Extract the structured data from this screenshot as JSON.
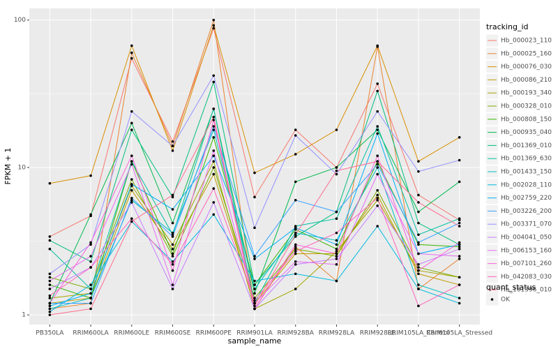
{
  "chart_data": {
    "type": "line",
    "x_label": "sample_name",
    "y_label": "FPKM + 1",
    "categories": [
      "PB350LA",
      "RRIM600LA",
      "RRIM600LE",
      "RRIM600SE",
      "RRIM600PE",
      "RRIM901LA",
      "RRIM928BA",
      "RRIM928LA",
      "RRIM928LE",
      "RRIM105LA_Control",
      "RRIM105LA_Stressed"
    ],
    "log_y": true,
    "ylim": [
      0.86,
      120
    ],
    "yticks": [
      1,
      10,
      100
    ],
    "grid": true,
    "point_color": "#000000",
    "legend_title": "tracking_id",
    "legend_position": "right",
    "shape_legend": {
      "title": "quant_status",
      "labels": [
        "OK"
      ]
    },
    "series": [
      {
        "name": "Hb_000023_110",
        "color": "#F8766D",
        "values": [
          3.4,
          4.7,
          55,
          15,
          88,
          6.3,
          18,
          10,
          37,
          6.5,
          4.4
        ]
      },
      {
        "name": "Hb_000025_160",
        "color": "#EA8331",
        "values": [
          1.1,
          1.2,
          60,
          14,
          100,
          1.1,
          2.9,
          1.7,
          66,
          1.5,
          2.4
        ]
      },
      {
        "name": "Hb_000076_030",
        "color": "#D89000",
        "values": [
          7.8,
          8.8,
          67,
          13,
          92,
          9.2,
          12.3,
          18,
          67,
          11,
          16
        ]
      },
      {
        "name": "Hb_000086_210",
        "color": "#C09B00",
        "values": [
          1.2,
          1.3,
          7,
          2.8,
          9,
          1.2,
          2.6,
          2.6,
          6.5,
          1.9,
          1.6
        ]
      },
      {
        "name": "Hb_000193_340",
        "color": "#A3A500",
        "values": [
          1.3,
          1.4,
          7.5,
          3,
          11,
          1.1,
          1.5,
          2.7,
          6,
          2,
          1.8
        ]
      },
      {
        "name": "Hb_000328_010",
        "color": "#7CAE00",
        "values": [
          1.8,
          1.5,
          8.3,
          2.5,
          10,
          1.3,
          2.8,
          2.5,
          7,
          2.1,
          1.8
        ]
      },
      {
        "name": "Hb_000808_150",
        "color": "#39B600",
        "values": [
          1.6,
          1.3,
          11,
          2.6,
          16,
          1.6,
          3.8,
          2.8,
          11,
          3,
          2.9
        ]
      },
      {
        "name": "Hb_000935_040",
        "color": "#00BB4E",
        "values": [
          1.2,
          4.8,
          20,
          4.2,
          25,
          1.4,
          8,
          10,
          18,
          5,
          8
        ]
      },
      {
        "name": "Hb_001369_010",
        "color": "#00BF7D",
        "values": [
          3.2,
          2.3,
          18,
          6.3,
          38,
          1.6,
          3.4,
          5,
          33,
          4.2,
          3
        ]
      },
      {
        "name": "Hb_001369_630",
        "color": "#00C1A3",
        "values": [
          2.8,
          1.5,
          11,
          3.5,
          25,
          1.2,
          4,
          4.5,
          19,
          3.5,
          4.5
        ]
      },
      {
        "name": "Hb_001433_150",
        "color": "#00BFC4",
        "values": [
          1.1,
          1.3,
          6,
          3.6,
          18,
          1.5,
          3.6,
          3.2,
          10,
          1.6,
          1.3
        ]
      },
      {
        "name": "Hb_002028_110",
        "color": "#00BAE0",
        "values": [
          1.05,
          1.6,
          4.3,
          2.3,
          4.8,
          1.7,
          1.9,
          1.7,
          4,
          1.5,
          1.2
        ]
      },
      {
        "name": "Hb_002759_220",
        "color": "#00B0F6",
        "values": [
          1.15,
          1.4,
          7.7,
          5.2,
          12,
          2.4,
          3.9,
          3,
          17,
          2.6,
          3
        ]
      },
      {
        "name": "Hb_003226_200",
        "color": "#35A2FF",
        "values": [
          1.2,
          1.2,
          6.2,
          3.4,
          19,
          2.5,
          6,
          5,
          10.5,
          3.1,
          4.2
        ]
      },
      {
        "name": "Hb_003371_070",
        "color": "#9590FF",
        "values": [
          1.9,
          3,
          24,
          14,
          42,
          3.9,
          16.5,
          9,
          24,
          9.4,
          11.2
        ]
      },
      {
        "name": "Hb_004041_050",
        "color": "#C77CFF",
        "values": [
          1.5,
          2.1,
          5.8,
          1.5,
          5.8,
          1.1,
          2.2,
          2.4,
          5.5,
          2.2,
          2.8
        ]
      },
      {
        "name": "Hb_006153_160",
        "color": "#E76BF3",
        "values": [
          1.7,
          2.5,
          10.5,
          1.6,
          13,
          1.2,
          2.3,
          2.2,
          9,
          2.6,
          2.5
        ]
      },
      {
        "name": "Hb_007101_260",
        "color": "#FA62DB",
        "values": [
          1.2,
          3.1,
          12,
          2,
          21,
          1.1,
          3,
          2.6,
          12,
          2,
          3.1
        ]
      },
      {
        "name": "Hb_042083_030",
        "color": "#FF62BC",
        "values": [
          1.35,
          2.1,
          4.5,
          2.2,
          7.2,
          1.25,
          2.7,
          3.6,
          6.2,
          1.15,
          1.6
        ]
      },
      {
        "name": "Hb_161396_010",
        "color": "#FF6C91",
        "values": [
          1.0,
          1.1,
          4.3,
          6.5,
          22,
          1.15,
          3.5,
          9.5,
          11,
          5.8,
          4
        ]
      }
    ]
  }
}
